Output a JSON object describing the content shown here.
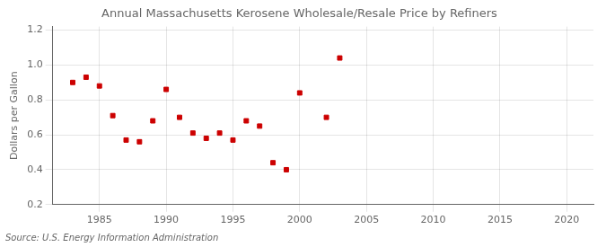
{
  "chart_data": {
    "type": "scatter",
    "title": "Annual Massachusetts Kerosene Wholesale/Resale Price by Refiners",
    "ylabel": "Dollars per Gallon",
    "source": "Source: U.S. Energy Information Administration",
    "x": [
      1983,
      1984,
      1985,
      1986,
      1987,
      1988,
      1989,
      1990,
      1991,
      1992,
      1993,
      1994,
      1995,
      1996,
      1997,
      1998,
      1999,
      2000,
      2002,
      2003
    ],
    "values": [
      0.9,
      0.93,
      0.88,
      0.71,
      0.57,
      0.56,
      0.68,
      0.86,
      0.7,
      0.61,
      0.58,
      0.61,
      0.57,
      0.68,
      0.65,
      0.44,
      0.4,
      0.84,
      0.7,
      1.04
    ],
    "color": "#cc0000",
    "marker": "square",
    "xlim": [
      1981.5,
      2022
    ],
    "ylim": [
      0.2,
      1.22
    ],
    "xticks": [
      1985,
      1990,
      1995,
      2000,
      2005,
      2010,
      2015,
      2020
    ],
    "yticks": [
      0.2,
      0.4,
      0.6,
      0.8,
      {
        "value": 1.0,
        "label": "1.0"
      },
      1.2
    ],
    "grid": true
  }
}
